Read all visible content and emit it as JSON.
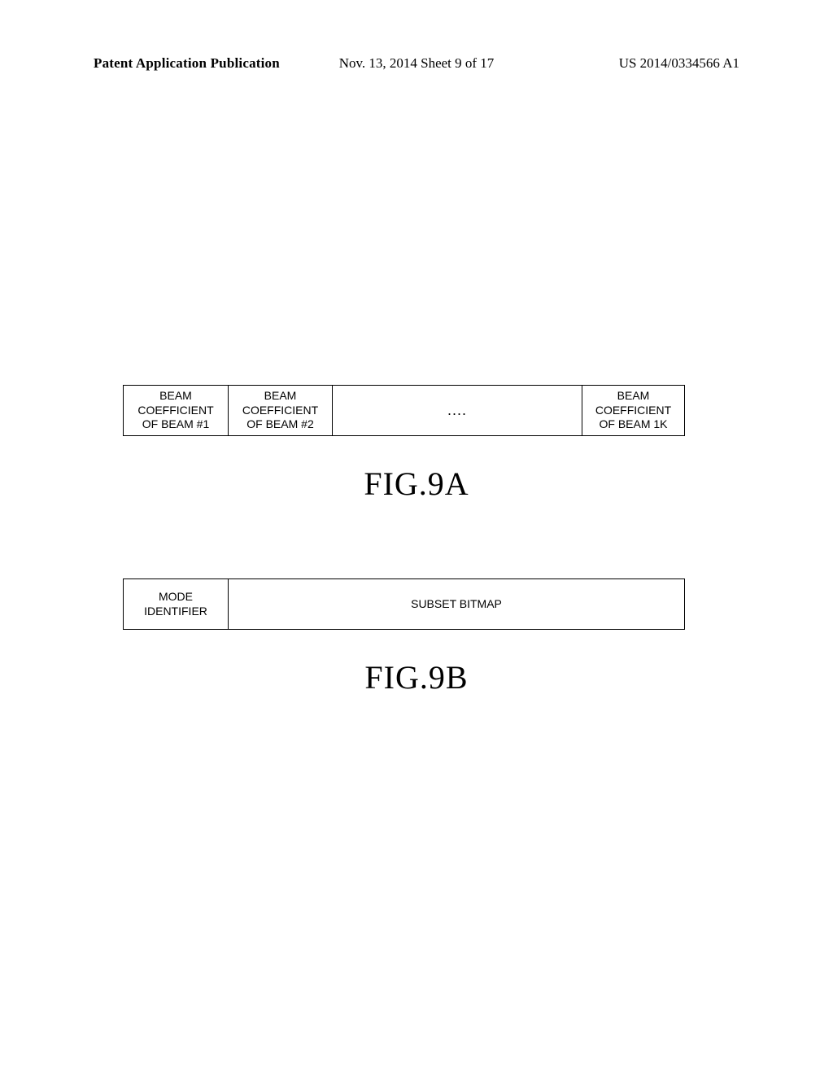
{
  "header": {
    "left": "Patent Application Publication",
    "center": "Nov. 13, 2014  Sheet 9 of 17",
    "right": "US 2014/0334566 A1"
  },
  "figureA": {
    "label": "FIG.9A",
    "cells": [
      "BEAM\nCOEFFICIENT\nOF BEAM #1",
      "BEAM\nCOEFFICIENT\nOF BEAM #2",
      "....",
      "BEAM\nCOEFFICIENT\nOF BEAM 1K"
    ]
  },
  "figureB": {
    "label": "FIG.9B",
    "cells": [
      "MODE\nIDENTIFIER",
      "SUBSET BITMAP"
    ]
  }
}
